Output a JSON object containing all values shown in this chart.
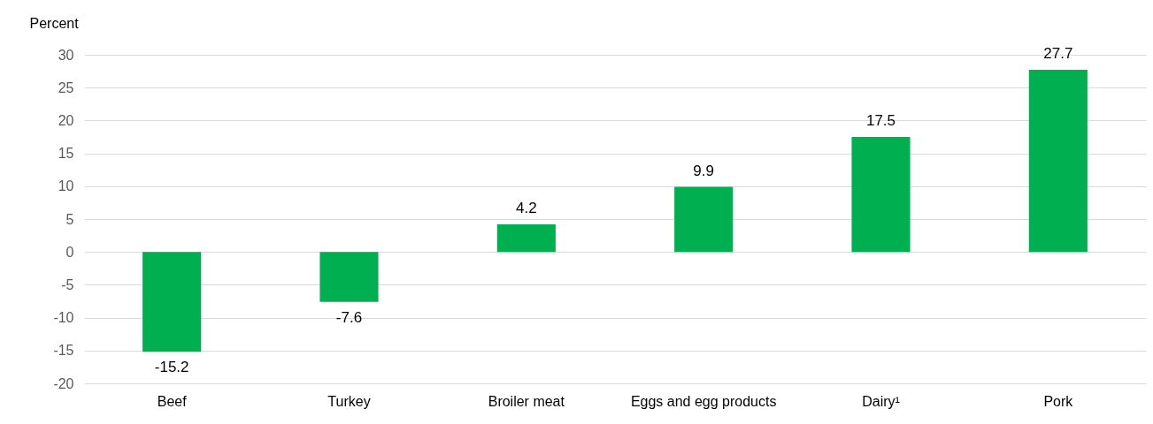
{
  "chart_data": {
    "type": "bar",
    "ylabel": "Percent",
    "categories": [
      "Beef",
      "Turkey",
      "Broiler meat",
      "Eggs and egg products",
      "Dairy¹",
      "Pork"
    ],
    "values": [
      -15.2,
      -7.6,
      4.2,
      9.9,
      17.5,
      27.7
    ],
    "color": "#00b050",
    "ylim": [
      -20,
      30
    ],
    "yticks": [
      -20,
      -15,
      -10,
      -5,
      0,
      5,
      10,
      15,
      20,
      25,
      30
    ],
    "grid": "y",
    "data_labels": true
  }
}
